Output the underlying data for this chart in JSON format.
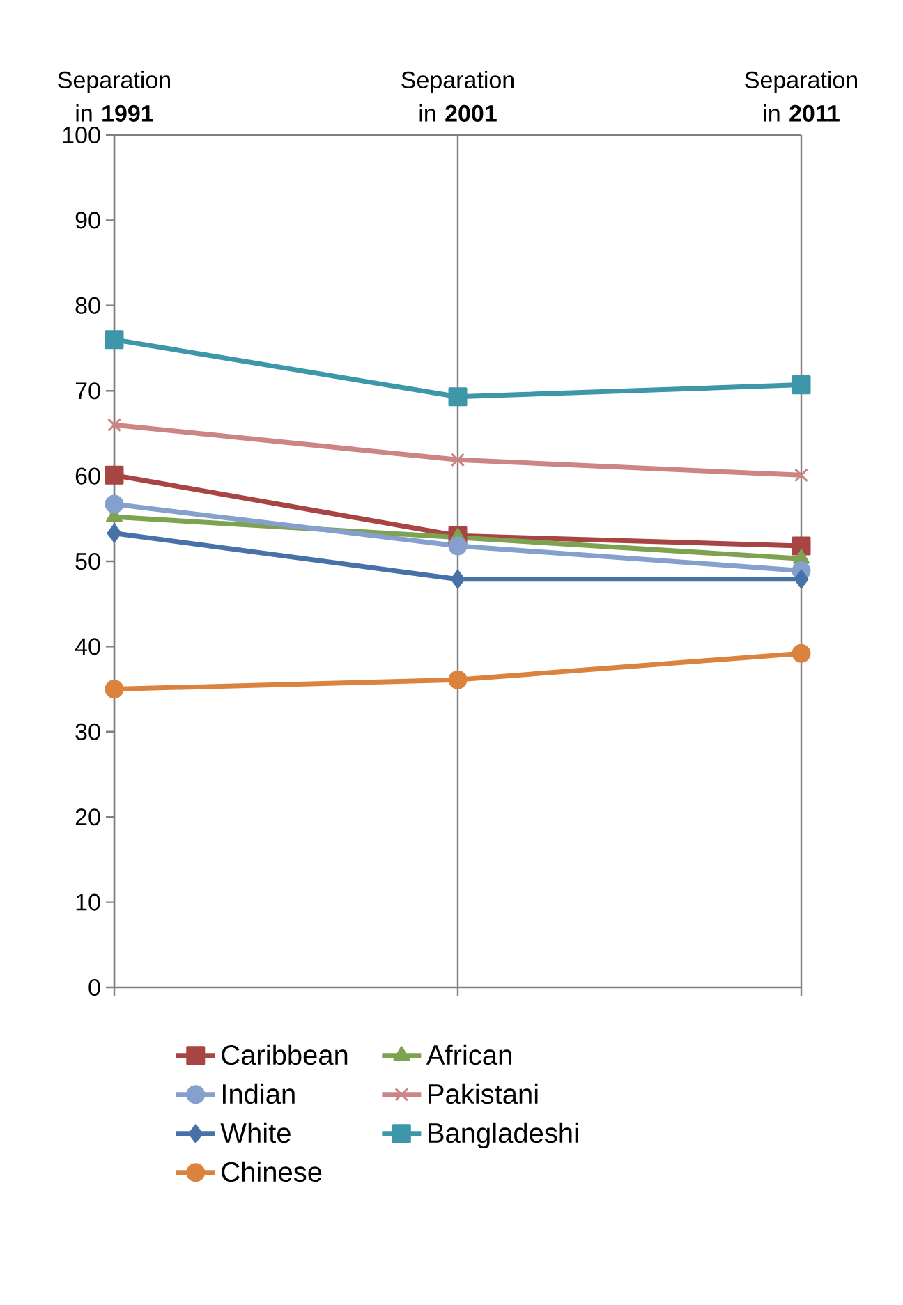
{
  "chart_data": {
    "type": "line",
    "categories": [
      "Separation in **1991**",
      "Separation in **2001**",
      "Separation in **2011**"
    ],
    "ylim": [
      0,
      100
    ],
    "yticks": [
      0,
      10,
      20,
      30,
      40,
      50,
      60,
      70,
      80,
      90,
      100
    ],
    "grid": "x",
    "legend": "bottom",
    "series": [
      {
        "name": "Caribbean",
        "color": "#a84444",
        "marker": "square",
        "values": [
          60.1,
          53,
          51.8
        ]
      },
      {
        "name": "African",
        "color": "#7ea350",
        "marker": "triangle",
        "values": [
          55.2,
          52.8,
          50.3
        ]
      },
      {
        "name": "Indian",
        "color": "#85a0cc",
        "marker": "circle",
        "values": [
          56.7,
          51.8,
          48.9
        ]
      },
      {
        "name": "Pakistani",
        "color": "#cc8585",
        "marker": "cross",
        "values": [
          66,
          61.9,
          60.1
        ]
      },
      {
        "name": "White",
        "color": "#4672a8",
        "marker": "diamond",
        "values": [
          53.3,
          47.9,
          47.9
        ]
      },
      {
        "name": "Bangladeshi",
        "color": "#3d97a8",
        "marker": "square",
        "values": [
          76,
          69.3,
          70.7
        ]
      },
      {
        "name": "Chinese",
        "color": "#db833e",
        "marker": "circle",
        "values": [
          35,
          36.1,
          39.2
        ]
      }
    ]
  }
}
